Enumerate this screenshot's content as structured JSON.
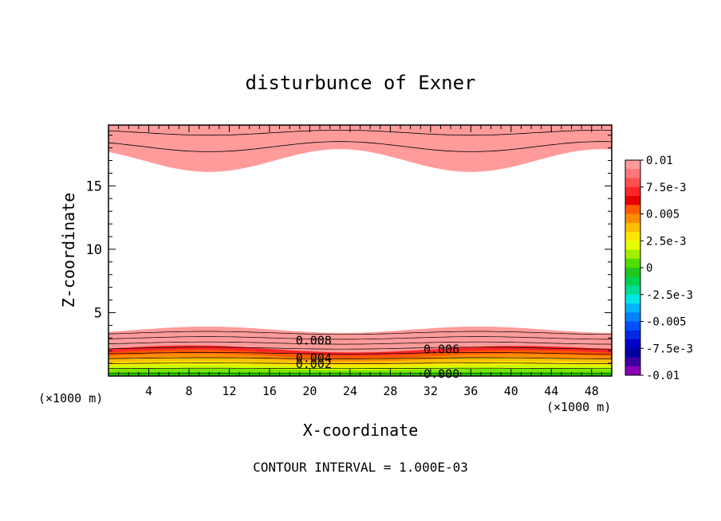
{
  "chart_data": {
    "type": "heatmap",
    "title": "disturbunce of Exner",
    "xlabel": "X-coordinate",
    "ylabel": "Z-coordinate",
    "x_unit_left": "(×1000 m)",
    "x_unit_right": "(×1000 m)",
    "xlim": [
      0,
      50
    ],
    "ylim": [
      0,
      19.8
    ],
    "x_ticks": [
      4,
      8,
      12,
      16,
      20,
      24,
      28,
      32,
      36,
      40,
      44,
      48
    ],
    "y_ticks": [
      5,
      10,
      15
    ],
    "footer": "CONTOUR INTERVAL = 1.000E-03",
    "colorbar": {
      "labels": [
        "0.01",
        "7.5e-3",
        "0.005",
        "2.5e-3",
        "0",
        "-2.5e-3",
        "-0.005",
        "-7.5e-3",
        "-0.01"
      ],
      "colors": [
        "#ff9b9b",
        "#ff7878",
        "#ff5050",
        "#ff2828",
        "#e60000",
        "#ff5a00",
        "#ff8c00",
        "#ffbe00",
        "#ffe600",
        "#e6ff00",
        "#a0f000",
        "#50dc00",
        "#1ec81e",
        "#00d250",
        "#00dc96",
        "#00e6e6",
        "#00b4ff",
        "#0082ff",
        "#0050ff",
        "#0028e6",
        "#0000c8",
        "#0000a0",
        "#3c00a0",
        "#8c00b4"
      ]
    },
    "bands": [
      {
        "level": 0.0001,
        "color": "#00c800"
      },
      {
        "level": 0.001,
        "color": "#28d200"
      },
      {
        "level": 0.002,
        "color": "#78e600"
      },
      {
        "level": 0.003,
        "color": "#c8ff00"
      },
      {
        "level": 0.004,
        "color": "#ffe600"
      },
      {
        "level": 0.005,
        "color": "#ffbe00"
      },
      {
        "level": 0.006,
        "color": "#ff8c00"
      },
      {
        "level": 0.007,
        "color": "#ff5a00"
      },
      {
        "level": 0.008,
        "color": "#ff2828"
      },
      {
        "level": 0.009,
        "color": "#ff5050"
      },
      {
        "level": 0.01,
        "color": "#ff7878"
      },
      {
        "level": 0.011,
        "color": "#ff9b9b"
      }
    ],
    "contour_labels": [
      {
        "text": "0.008",
        "x": 18.6,
        "y": 2.8
      },
      {
        "text": "0.006",
        "x": 31.3,
        "y": 2.1
      },
      {
        "text": "0.004",
        "x": 18.6,
        "y": 1.4
      },
      {
        "text": "0.002",
        "x": 18.6,
        "y": 0.95
      },
      {
        "text": "0.000",
        "x": 31.3,
        "y": 0.15
      }
    ]
  }
}
